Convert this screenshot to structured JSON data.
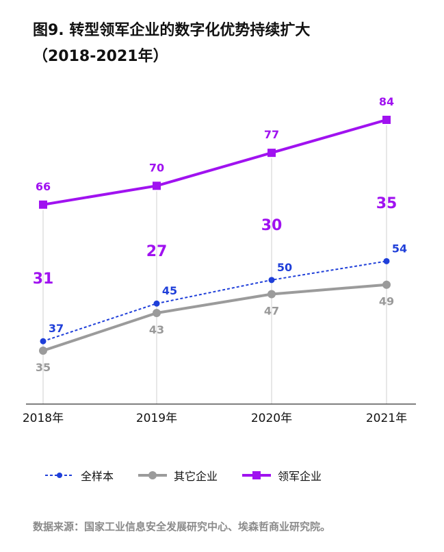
{
  "title_line1": "图9. 转型领军企业的数字化优势持续扩大",
  "title_line2": "（2018-2021年）",
  "source": "数据来源：国家工业信息安全发展研究中心、埃森哲商业研究院。",
  "chart_data": {
    "type": "line",
    "title": "图9. 转型领军企业的数字化优势持续扩大（2018-2021年）",
    "categories": [
      "2018年",
      "2019年",
      "2020年",
      "2021年"
    ],
    "series": [
      {
        "name": "全样本",
        "values": [
          37,
          45,
          50,
          54
        ],
        "color": "#1f3fd9",
        "style": "dashed",
        "marker": "circle"
      },
      {
        "name": "其它企业",
        "values": [
          35,
          43,
          47,
          49
        ],
        "color": "#9b9b9b",
        "style": "solid",
        "marker": "circle"
      },
      {
        "name": "领军企业",
        "values": [
          66,
          70,
          77,
          84
        ],
        "color": "#a012f0",
        "style": "solid",
        "marker": "square"
      }
    ],
    "gap_labels": [
      "31",
      "27",
      "30",
      "35"
    ],
    "gap_color": "#a012f0",
    "ylim": [
      20,
      90
    ],
    "xlabel": "",
    "ylabel": ""
  }
}
